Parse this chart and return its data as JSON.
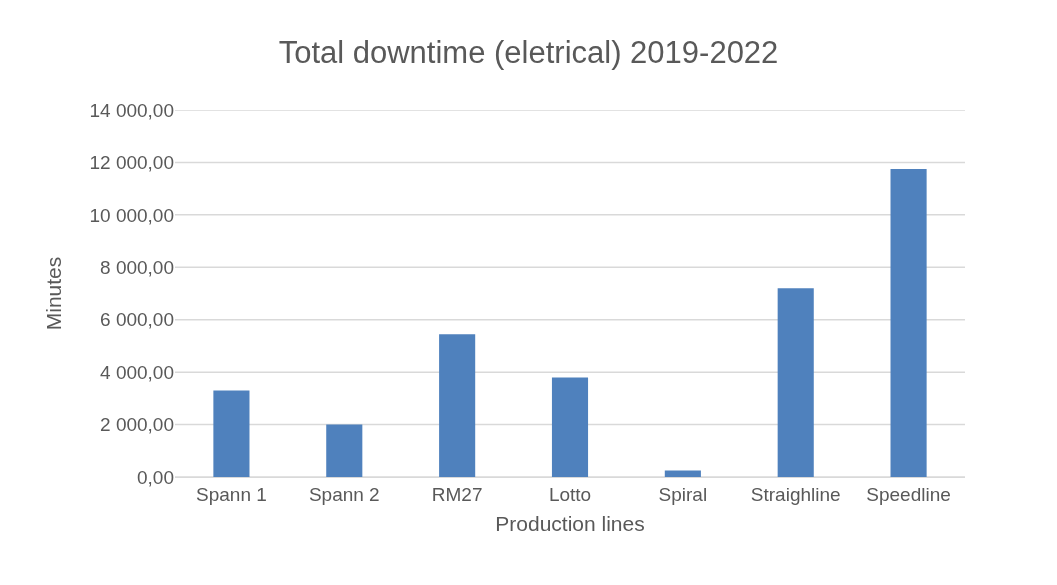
{
  "chart_data": {
    "type": "bar",
    "title": "Total downtime (eletrical) 2019-2022",
    "xlabel": "Production lines",
    "ylabel": "Minutes",
    "categories": [
      "Spann 1",
      "Spann 2",
      "RM27",
      "Lotto",
      "Spiral",
      "Straighline",
      "Speedline"
    ],
    "values": [
      3300,
      2000,
      5450,
      3800,
      250,
      7200,
      11750
    ],
    "color": "#4f81bd",
    "ylim": [
      0,
      14000
    ],
    "yticks": [
      {
        "value": 0,
        "label": "0,00"
      },
      {
        "value": 2000,
        "label": "2 000,00"
      },
      {
        "value": 4000,
        "label": "4 000,00"
      },
      {
        "value": 6000,
        "label": "6 000,00"
      },
      {
        "value": 8000,
        "label": "8 000,00"
      },
      {
        "value": 10000,
        "label": "10 000,00"
      },
      {
        "value": 12000,
        "label": "12 000,00"
      },
      {
        "value": 14000,
        "label": "14 000,00"
      }
    ],
    "grid": "y"
  }
}
